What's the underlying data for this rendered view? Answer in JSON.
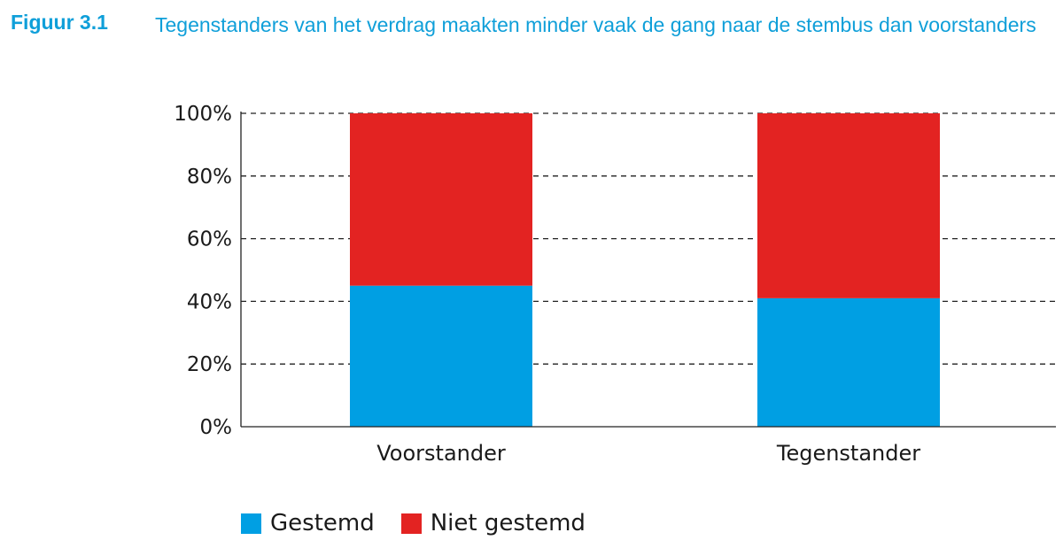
{
  "figure": {
    "label": "Figuur 3.1",
    "title": "Tegenstanders van het verdrag maakten minder vaak de gang naar de stembus dan voorstanders"
  },
  "chart_data": {
    "type": "bar",
    "stacked": true,
    "categories": [
      "Voorstander",
      "Tegenstander"
    ],
    "series": [
      {
        "name": "Gestemd",
        "values": [
          45,
          41
        ],
        "color": "#009fe3"
      },
      {
        "name": "Niet gestemd",
        "values": [
          55,
          59
        ],
        "color": "#e32322"
      }
    ],
    "ylim": [
      0,
      100
    ],
    "yticks": [
      {
        "value": 0,
        "label": "0%"
      },
      {
        "value": 20,
        "label": "20%"
      },
      {
        "value": 40,
        "label": "40%"
      },
      {
        "value": 60,
        "label": "60%"
      },
      {
        "value": 80,
        "label": "80%"
      },
      {
        "value": 100,
        "label": "100%"
      }
    ],
    "grid": true,
    "legend_position": "bottom-left"
  }
}
